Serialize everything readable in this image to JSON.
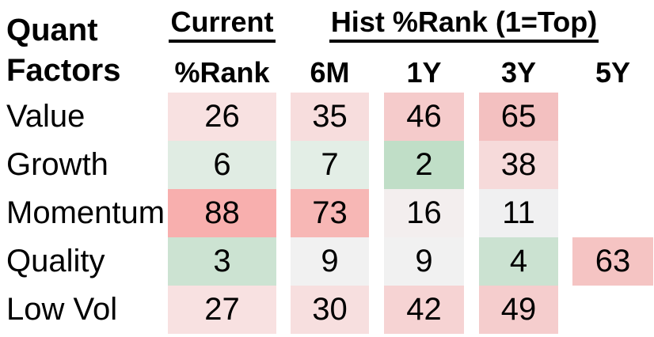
{
  "title": {
    "line1": "Quant",
    "line2": "Factors"
  },
  "header": {
    "current_label": "Current",
    "hist_label": "Hist %Rank (1=Top)",
    "sub_columns": {
      "rank": "%Rank",
      "m6": "6M",
      "y1": "1Y",
      "y3": "3Y",
      "y5": "5Y"
    }
  },
  "colors": {
    "text": "#000000",
    "background": "#ffffff",
    "scale_green_strong": "#C0DEC7",
    "scale_neutral": "#F0F0F0",
    "scale_red_strong": "#F8AFAE"
  },
  "table": {
    "rows": [
      {
        "label": "Value",
        "cells": [
          {
            "v": "26",
            "bg": "#F8E1E1"
          },
          {
            "v": "35",
            "bg": "#F7DDDD"
          },
          {
            "v": "46",
            "bg": "#F5CBCB"
          },
          {
            "v": "65",
            "bg": "#F3C0C0"
          },
          {
            "v": "",
            "bg": ""
          }
        ]
      },
      {
        "label": "Growth",
        "cells": [
          {
            "v": "6",
            "bg": "#E0ECE3"
          },
          {
            "v": "7",
            "bg": "#E3EEE6"
          },
          {
            "v": "2",
            "bg": "#C0DEC7"
          },
          {
            "v": "38",
            "bg": "#F6DADA"
          },
          {
            "v": "",
            "bg": ""
          }
        ]
      },
      {
        "label": "Momentum",
        "cells": [
          {
            "v": "88",
            "bg": "#F8AFAE"
          },
          {
            "v": "73",
            "bg": "#F7B7B5"
          },
          {
            "v": "16",
            "bg": "#F3EEEE"
          },
          {
            "v": "11",
            "bg": "#F0F0F1"
          },
          {
            "v": "",
            "bg": ""
          }
        ]
      },
      {
        "label": "Quality",
        "cells": [
          {
            "v": "3",
            "bg": "#CCE3D2"
          },
          {
            "v": "9",
            "bg": "#F1F1F1"
          },
          {
            "v": "9",
            "bg": "#F1F1F1"
          },
          {
            "v": "4",
            "bg": "#CBE2D1"
          },
          {
            "v": "63",
            "bg": "#F5C4C3"
          }
        ]
      },
      {
        "label": "Low Vol",
        "cells": [
          {
            "v": "27",
            "bg": "#F8E1E1"
          },
          {
            "v": "30",
            "bg": "#F7DFDF"
          },
          {
            "v": "42",
            "bg": "#F6D3D3"
          },
          {
            "v": "49",
            "bg": "#F5CDCD"
          },
          {
            "v": "",
            "bg": ""
          }
        ]
      }
    ]
  },
  "chart_data": {
    "type": "heatmap",
    "title": "Quant Factors — Hist %Rank (1=Top)",
    "columns": [
      "Current %Rank",
      "6M",
      "1Y",
      "3Y",
      "5Y"
    ],
    "rows": [
      "Value",
      "Growth",
      "Momentum",
      "Quality",
      "Low Vol"
    ],
    "values": [
      [
        26,
        35,
        46,
        65,
        null
      ],
      [
        6,
        7,
        2,
        38,
        null
      ],
      [
        88,
        73,
        16,
        11,
        null
      ],
      [
        3,
        9,
        9,
        4,
        63
      ],
      [
        27,
        30,
        42,
        49,
        null
      ]
    ],
    "value_range": [
      1,
      100
    ],
    "scale_note": "1=Top",
    "color_scale": {
      "low": "green",
      "mid": "neutral-white",
      "high": "red"
    },
    "legend_position": "none",
    "grid": false
  }
}
